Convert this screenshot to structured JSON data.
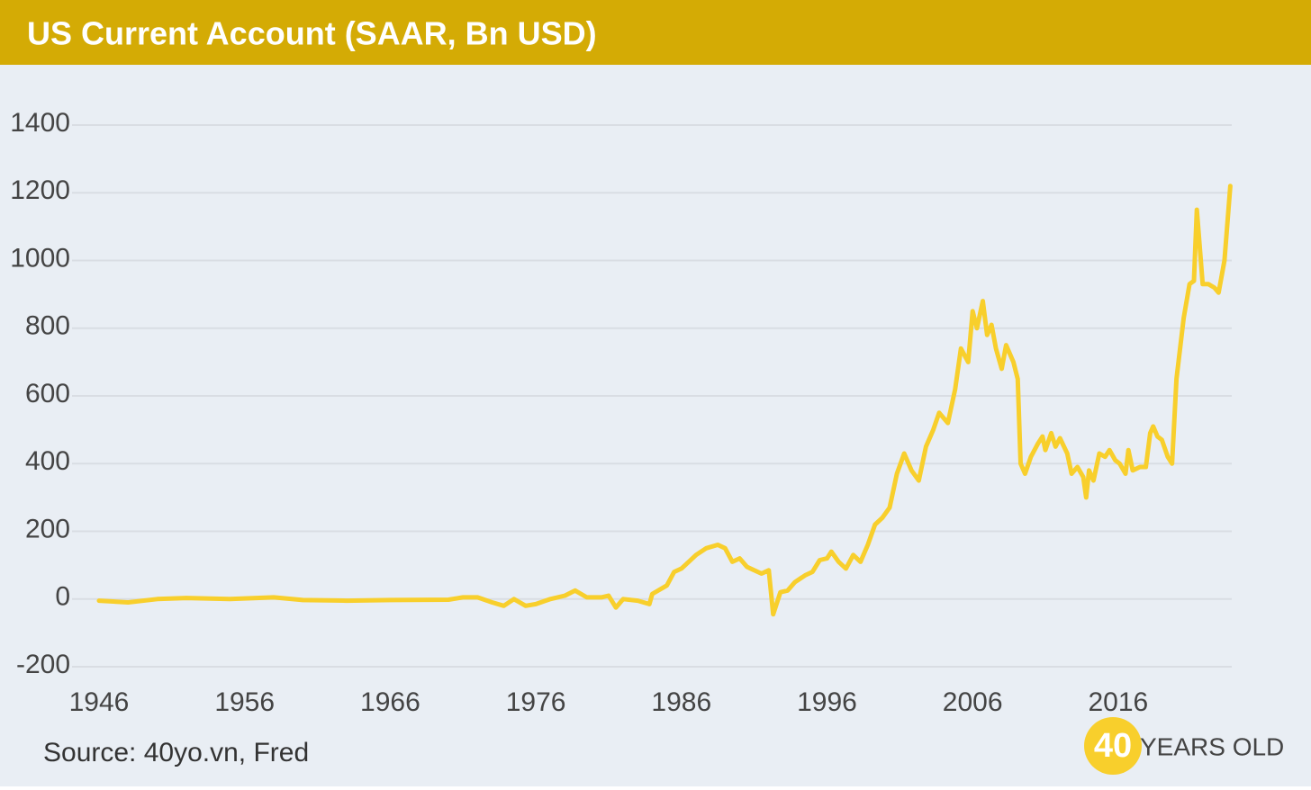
{
  "chart_data": {
    "type": "line",
    "title": "US Current Account (SAAR, Bn USD)",
    "source": "Source: 40yo.vn, Fred",
    "logo": {
      "number": "40",
      "text": "YEARS OLD"
    },
    "x": [
      1946,
      1948,
      1950,
      1952,
      1955,
      1958,
      1960,
      1963,
      1966,
      1970,
      1971,
      1972,
      1973,
      1973.8,
      1974.5,
      1975.3,
      1976,
      1977,
      1978,
      1978.7,
      1979.5,
      1980.5,
      1981,
      1981.5,
      1982,
      1983,
      1983.8,
      1984,
      1985,
      1985.5,
      1986,
      1986.5,
      1987,
      1987.7,
      1988.5,
      1989,
      1989.5,
      1990,
      1990.5,
      1991,
      1991.5,
      1992,
      1992.3,
      1992.8,
      1993.3,
      1993.8,
      1994.5,
      1995,
      1995.5,
      1996,
      1996.3,
      1996.8,
      1997.3,
      1997.8,
      1998.3,
      1998.8,
      1999.3,
      1999.8,
      2000.3,
      2000.8,
      2001.3,
      2001.8,
      2002.3,
      2002.8,
      2003.3,
      2003.7,
      2004.3,
      2004.8,
      2005.2,
      2005.7,
      2006,
      2006.3,
      2006.7,
      2007,
      2007.3,
      2007.6,
      2008,
      2008.3,
      2008.8,
      2009.1,
      2009.3,
      2009.6,
      2010,
      2010.5,
      2010.8,
      2011,
      2011.4,
      2011.7,
      2012,
      2012.5,
      2012.8,
      2013.2,
      2013.6,
      2013.8,
      2014,
      2014.3,
      2014.7,
      2015.1,
      2015.4,
      2015.8,
      2016.1,
      2016.5,
      2016.7,
      2017,
      2017.5,
      2017.9,
      2018.2,
      2018.4,
      2018.7,
      2019,
      2019.4,
      2019.7,
      2020,
      2020.5,
      2020.9,
      2021.2,
      2021.4,
      2021.8,
      2022.2,
      2022.6,
      2022.9,
      2023.3,
      2023.7
    ],
    "series": [
      {
        "name": "US Current Account",
        "color": "#f8cf2c",
        "values": [
          -5,
          -10,
          0,
          3,
          0,
          5,
          -3,
          -5,
          -3,
          -2,
          5,
          5,
          -10,
          -20,
          0,
          -20,
          -15,
          0,
          10,
          25,
          5,
          5,
          10,
          -25,
          0,
          -5,
          -15,
          15,
          40,
          80,
          90,
          110,
          130,
          150,
          160,
          150,
          110,
          120,
          95,
          85,
          75,
          85,
          -45,
          20,
          25,
          50,
          70,
          80,
          115,
          120,
          140,
          110,
          90,
          130,
          110,
          160,
          220,
          240,
          270,
          370,
          430,
          380,
          350,
          450,
          500,
          550,
          520,
          620,
          740,
          700,
          850,
          800,
          880,
          780,
          810,
          740,
          680,
          750,
          700,
          650,
          400,
          370,
          420,
          460,
          480,
          440,
          490,
          450,
          475,
          430,
          370,
          390,
          360,
          300,
          380,
          350,
          430,
          420,
          440,
          410,
          400,
          370,
          440,
          380,
          390,
          390,
          490,
          510,
          480,
          470,
          420,
          400,
          650,
          830,
          930,
          940,
          1150,
          930,
          930,
          920,
          905,
          1000,
          1220
        ]
      }
    ],
    "xlim": [
      1946,
      2023.8
    ],
    "xticks": [
      1946,
      1956,
      1966,
      1976,
      1986,
      1996,
      2006,
      2016
    ],
    "ylim": [
      -200,
      1400
    ],
    "yticks": [
      -200,
      0,
      200,
      400,
      600,
      800,
      1000,
      1200,
      1400
    ],
    "grid": true
  }
}
